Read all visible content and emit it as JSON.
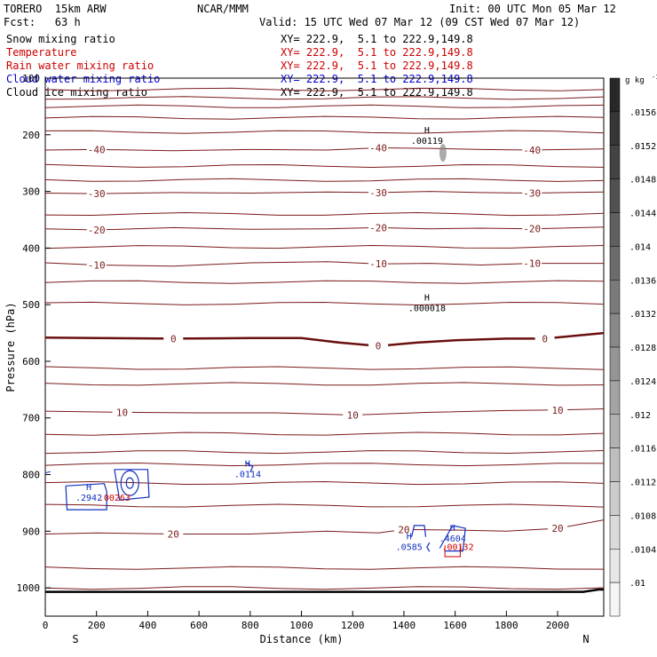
{
  "header": {
    "model": "TORERO  15km ARW",
    "center": "NCAR/MMM",
    "init": "Init: 00 UTC Mon 05 Mar 12",
    "fcst": "Fcst:   63 h",
    "valid": "Valid: 15 UTC Wed 07 Mar 12 (09 CST Wed 07 Mar 12)"
  },
  "legend": [
    {
      "name": "Snow mixing ratio",
      "xy": "XY= 222.9,  5.1 to 222.9,149.8",
      "color": "#000000"
    },
    {
      "name": "Temperature",
      "xy": "XY= 222.9,  5.1 to 222.9,149.8",
      "color": "#cc0000"
    },
    {
      "name": "Rain water mixing ratio",
      "xy": "XY= 222.9,  5.1 to 222.9,149.8",
      "color": "#cc0000"
    },
    {
      "name": "Cloud water mixing ratio",
      "xy": "XY= 222.9,  5.1 to 222.9,149.8",
      "color": "#0000cc"
    },
    {
      "name": "Cloud ice mixing ratio",
      "xy": "XY= 222.9,  5.1 to 222.9,149.8",
      "color": "#000000"
    }
  ],
  "chart_data": {
    "type": "line",
    "subtype": "cross-section contour",
    "xlabel": "Distance (km)",
    "ylabel": "Pressure (hPa)",
    "xlim": [
      0,
      2180
    ],
    "ylim": [
      1050,
      100
    ],
    "yscale": "linear",
    "x_ticks": [
      "0",
      "200",
      "400",
      "600",
      "800",
      "1000",
      "1200",
      "1400",
      "1600",
      "1800",
      "2000"
    ],
    "y_ticks": [
      "100",
      "200",
      "300",
      "400",
      "500",
      "600",
      "700",
      "800",
      "900",
      "1000"
    ],
    "endpoints": {
      "left": "S",
      "right": "N"
    },
    "temperature_contours": [
      {
        "label": "-40",
        "x": [
          0,
          200,
          500,
          800,
          1100,
          1300,
          1500,
          1700,
          1900,
          2180
        ],
        "p": [
          227,
          226,
          228,
          226,
          227,
          223,
          224,
          226,
          227,
          225
        ]
      },
      {
        "label": "-30",
        "x": [
          0,
          200,
          500,
          800,
          1100,
          1300,
          1500,
          1700,
          1900,
          2180
        ],
        "p": [
          303,
          304,
          302,
          303,
          301,
          302,
          300,
          302,
          303,
          301
        ]
      },
      {
        "label": "-20",
        "x": [
          0,
          200,
          500,
          800,
          1100,
          1300,
          1500,
          1700,
          1900,
          2180
        ],
        "p": [
          366,
          368,
          364,
          367,
          366,
          364,
          366,
          365,
          366,
          363
        ]
      },
      {
        "label": "-10",
        "x": [
          0,
          200,
          500,
          800,
          1100,
          1300,
          1500,
          1700,
          1900,
          2180
        ],
        "p": [
          426,
          430,
          432,
          426,
          424,
          428,
          427,
          430,
          427,
          427
        ]
      },
      {
        "label": "0",
        "x": [
          0,
          200,
          500,
          800,
          1000,
          1150,
          1300,
          1450,
          1600,
          1800,
          1950,
          2180
        ],
        "p": [
          558,
          559,
          560,
          559,
          559,
          567,
          573,
          567,
          563,
          560,
          560,
          550
        ]
      },
      {
        "label": "10",
        "x": [
          0,
          300,
          600,
          900,
          1200,
          1500,
          1800,
          2000,
          2180
        ],
        "p": [
          688,
          690,
          691,
          691,
          695,
          690,
          687,
          686,
          684
        ]
      },
      {
        "label": "20",
        "x": [
          0,
          200,
          500,
          800,
          1100,
          1300,
          1400,
          1600,
          1800,
          2000,
          2180
        ],
        "p": [
          905,
          903,
          905,
          905,
          900,
          903,
          897,
          898,
          900,
          895,
          880
        ]
      }
    ],
    "extra_isotherm_levels_unlabeled": [
      120,
      135,
      150,
      170,
      195,
      255,
      280,
      340,
      398,
      460,
      498,
      612,
      640,
      728,
      760,
      782,
      815,
      855,
      965,
      1000
    ],
    "surface_pressure": {
      "x": [
        0,
        2100,
        2160,
        2180
      ],
      "p": [
        1007,
        1007,
        1003,
        1003
      ]
    },
    "maxima": [
      {
        "label": "H",
        "value": ".00119",
        "x": 1490,
        "p": 210,
        "field": "Snow mixing ratio"
      },
      {
        "label": "H",
        "value": ".000018",
        "x": 1490,
        "p": 505,
        "field": "Snow mixing ratio"
      },
      {
        "label": "H",
        "value": ".0114",
        "x": 790,
        "p": 798,
        "field": "Cloud water mixing ratio"
      },
      {
        "label": "H",
        "value": ".2942",
        "x": 170,
        "p": 840,
        "field": "Cloud water mixing ratio"
      },
      {
        "label": "",
        "value": ".00263",
        "x": 270,
        "p": 840,
        "field": "Rain water mixing ratio"
      },
      {
        "label": "H",
        "value": ".0585",
        "x": 1420,
        "p": 927,
        "field": "Cloud water mixing ratio"
      },
      {
        "label": "H",
        "value": ".4604",
        "x": 1590,
        "p": 912,
        "field": "Cloud water mixing ratio"
      },
      {
        "label": "",
        "value": ".00132",
        "x": 1610,
        "p": 927,
        "field": "Rain water mixing ratio"
      }
    ],
    "colorbar": {
      "unit": "g kg",
      "unit_exponent": "-1",
      "ticks": [
        ".0156",
        ".0152",
        ".0148",
        ".0144",
        ".014",
        ".0136",
        ".0132",
        ".0128",
        ".0124",
        ".012",
        ".0116",
        ".0112",
        ".0108",
        ".0104",
        ".01"
      ]
    }
  }
}
